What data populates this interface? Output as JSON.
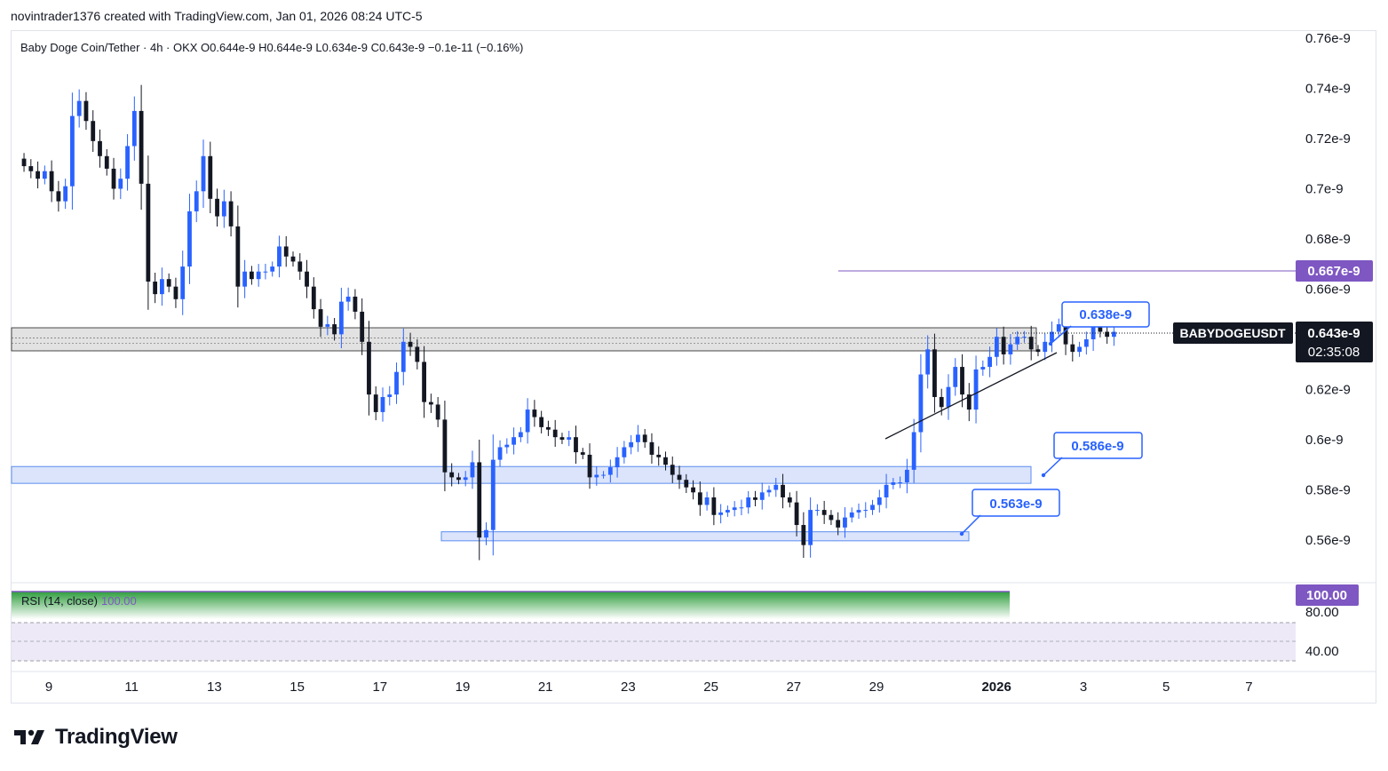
{
  "header": {
    "attribution": "novintrader1376 created with TradingView.com, Jan 01, 2026 08:24 UTC-5"
  },
  "legend": {
    "text": "Baby Doge Coin/Tether · 4h · OKX   O0.644e-9   H0.644e-9   L0.634e-9   C0.643e-9   −0.1e-11 (−0.16%)"
  },
  "symbol": {
    "ticker": "BABYDOGEUSDT",
    "last_price": "0.643e-9",
    "countdown": "02:35:08",
    "high_marker": "0.667e-9"
  },
  "rsi": {
    "label": "RSI (14, close)",
    "value": "100.00",
    "value_badge": "100.00",
    "ticks": [
      "80.00",
      "40.00"
    ]
  },
  "annotations": {
    "callout_1": "0.638e-9",
    "callout_2": "0.586e-9",
    "callout_3": "0.563e-9"
  },
  "branding": {
    "logo_text": "TradingView"
  },
  "colors": {
    "up": "#2962ff",
    "down": "#131722",
    "zone_fill": "#dbe4fb",
    "zone_border": "#5b8def",
    "purple": "#7e57c2",
    "gray_zone": "#d8d8d8"
  },
  "chart_data": {
    "type": "candlestick",
    "title": "Baby Doge Coin/Tether · 4h · OKX",
    "y_unit": "e-9",
    "ylim": [
      0.548,
      0.767
    ],
    "y_ticks": [
      {
        "v": 0.76,
        "label": "0.76e-9"
      },
      {
        "v": 0.74,
        "label": "0.74e-9"
      },
      {
        "v": 0.72,
        "label": "0.72e-9"
      },
      {
        "v": 0.7,
        "label": "0.7e-9"
      },
      {
        "v": 0.68,
        "label": "0.68e-9"
      },
      {
        "v": 0.66,
        "label": "0.66e-9"
      },
      {
        "v": 0.62,
        "label": "0.62e-9"
      },
      {
        "v": 0.6,
        "label": "0.6e-9"
      },
      {
        "v": 0.58,
        "label": "0.58e-9"
      },
      {
        "v": 0.56,
        "label": "0.56e-9"
      }
    ],
    "x_ticks": [
      "9",
      "11",
      "13",
      "15",
      "17",
      "19",
      "21",
      "23",
      "25",
      "27",
      "29",
      "2026",
      "3",
      "5",
      "7"
    ],
    "x_start_day": 8.4,
    "candle_interval_days": 0.1667,
    "closes": [
      0.709,
      0.707,
      0.704,
      0.707,
      0.699,
      0.695,
      0.701,
      0.729,
      0.735,
      0.727,
      0.719,
      0.713,
      0.708,
      0.7,
      0.704,
      0.717,
      0.731,
      0.702,
      0.663,
      0.658,
      0.664,
      0.661,
      0.656,
      0.669,
      0.691,
      0.699,
      0.713,
      0.696,
      0.689,
      0.695,
      0.685,
      0.661,
      0.667,
      0.664,
      0.667,
      0.667,
      0.669,
      0.677,
      0.673,
      0.671,
      0.667,
      0.661,
      0.652,
      0.645,
      0.646,
      0.642,
      0.655,
      0.657,
      0.651,
      0.639,
      0.618,
      0.611,
      0.617,
      0.618,
      0.627,
      0.639,
      0.637,
      0.631,
      0.615,
      0.614,
      0.608,
      0.587,
      0.585,
      0.584,
      0.585,
      0.591,
      0.561,
      0.564,
      0.592,
      0.597,
      0.598,
      0.601,
      0.603,
      0.612,
      0.609,
      0.605,
      0.604,
      0.601,
      0.6,
      0.601,
      0.595,
      0.594,
      0.585,
      0.586,
      0.586,
      0.589,
      0.593,
      0.597,
      0.599,
      0.602,
      0.599,
      0.594,
      0.593,
      0.59,
      0.586,
      0.584,
      0.581,
      0.579,
      0.574,
      0.577,
      0.57,
      0.571,
      0.572,
      0.573,
      0.573,
      0.577,
      0.576,
      0.579,
      0.58,
      0.582,
      0.577,
      0.575,
      0.566,
      0.558,
      0.572,
      0.572,
      0.57,
      0.568,
      0.565,
      0.569,
      0.571,
      0.572,
      0.572,
      0.574,
      0.577,
      0.582,
      0.583,
      0.583,
      0.588,
      0.603,
      0.626,
      0.636,
      0.617,
      0.613,
      0.621,
      0.629,
      0.618,
      0.612,
      0.628,
      0.629,
      0.633,
      0.641,
      0.634,
      0.638,
      0.641,
      0.641,
      0.636,
      0.635,
      0.639,
      0.643,
      0.646,
      0.638,
      0.635,
      0.637,
      0.64,
      0.646,
      0.643,
      0.641,
      0.643
    ]
  }
}
